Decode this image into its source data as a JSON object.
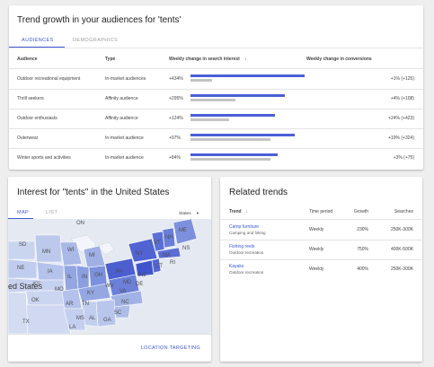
{
  "audiences": {
    "title": "Trend growth in your audiences for 'tents'",
    "tabs": [
      {
        "label": "AUDIENCES",
        "active": true
      },
      {
        "label": "DEMOGRAPHICS",
        "active": false
      }
    ],
    "columns": {
      "audience": "Audience",
      "type": "Type",
      "weekly_search": "Weekly change in search interest",
      "weekly_conversions": "Weekly change in conversions"
    },
    "rows": [
      {
        "audience": "Outdoor recreational equipment",
        "type": "In-market audiences",
        "change": "+434%",
        "conversions": "+1% (+125)",
        "bar_primary": 1.0,
        "bar_secondary": 0.19
      },
      {
        "audience": "Thrill seekers",
        "type": "Affinity audience",
        "change": "+295%",
        "conversions": "+4% (+108)",
        "bar_primary": 0.83,
        "bar_secondary": 0.39
      },
      {
        "audience": "Outdoor enthusiasts",
        "type": "Affinity audience",
        "change": "+124%",
        "conversions": "+24% (+423)",
        "bar_primary": 0.74,
        "bar_secondary": 0.34
      },
      {
        "audience": "Outerwear",
        "type": "In-market audience",
        "change": "+97%",
        "conversions": "+19% (+324)",
        "bar_primary": 0.91,
        "bar_secondary": 0.7
      },
      {
        "audience": "Winter sports and activities",
        "type": "In-market audience",
        "change": "+84%",
        "conversions": "+3% (+75)",
        "bar_primary": 0.76,
        "bar_secondary": 0.7
      }
    ],
    "bar_colors": {
      "primary": "#4a5fd6",
      "secondary": "#c4c4c4"
    }
  },
  "interest": {
    "title": "Interest for \"tents\" in the United States",
    "tabs": [
      {
        "label": "MAP",
        "active": true
      },
      {
        "label": "LIST",
        "active": false
      }
    ],
    "dropdown": {
      "selected": "States"
    },
    "map_labels": [
      "ON",
      "SD",
      "MN",
      "WI",
      "MI",
      "NE",
      "IA",
      "IL",
      "IN",
      "OH",
      "PA",
      "NY",
      "VT",
      "NH",
      "ME",
      "NS",
      "MA",
      "RI",
      "CT",
      "NJ",
      "DE",
      "MD",
      "WV",
      "VA",
      "KY",
      "TN",
      "NC",
      "SC",
      "GA",
      "AL",
      "MS",
      "AR",
      "OK",
      "TX",
      "LA",
      "MO",
      "KS",
      "ed States"
    ],
    "footer_link": "LOCATION TARGETING"
  },
  "related": {
    "title": "Related trends",
    "columns": {
      "trend": "Trend",
      "period": "Time period",
      "growth": "Growth",
      "searches": "Searches"
    },
    "rows": [
      {
        "trend": "Camp furniture",
        "category": "Camping and hiking",
        "period": "Weekly",
        "growth": "230%",
        "searches": "250K-300K"
      },
      {
        "trend": "Fishing reels",
        "category": "Outdoor recreation",
        "period": "Weekly",
        "growth": "750%",
        "searches": "400K-500K"
      },
      {
        "trend": "Kayaks",
        "category": "Outdoor recreation",
        "period": "Weekly",
        "growth": "400%",
        "searches": "250K-300K"
      }
    ]
  }
}
